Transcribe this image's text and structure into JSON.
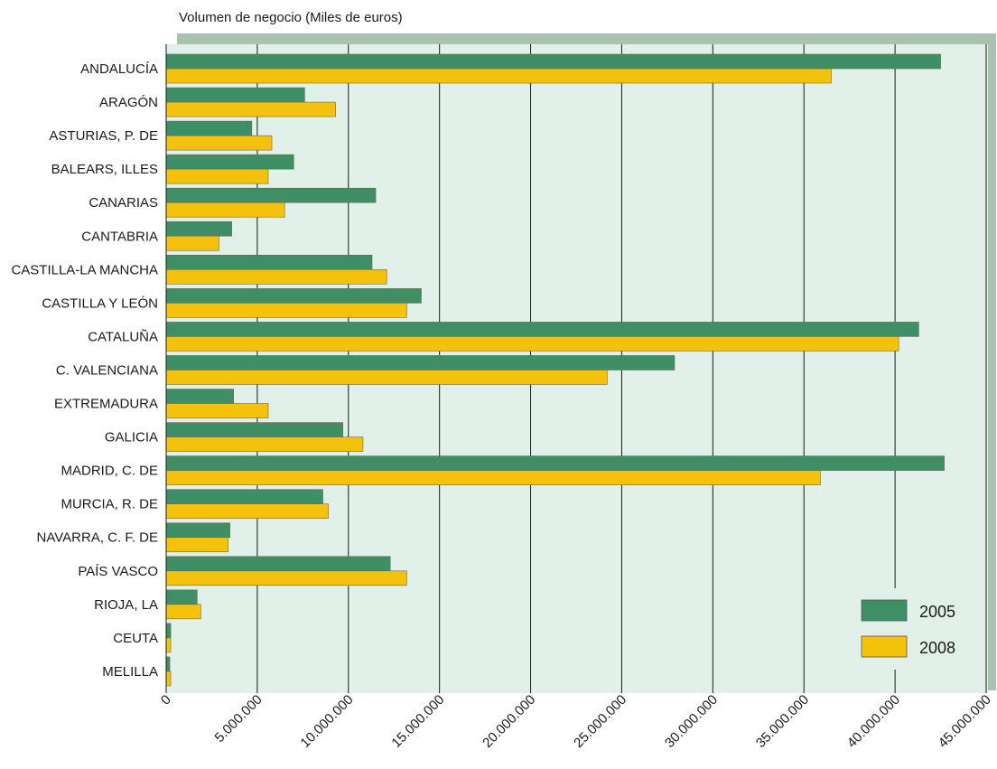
{
  "chart_data": {
    "type": "bar",
    "orientation": "horizontal",
    "title": "Volumen de negocio (Miles de euros)",
    "categories": [
      "ANDALUCÍA",
      "ARAGÓN",
      "ASTURIAS, P. DE",
      "BALEARS, ILLES",
      "CANARIAS",
      "CANTABRIA",
      "CASTILLA-LA MANCHA",
      "CASTILLA Y LEÓN",
      "CATALUÑA",
      "C. VALENCIANA",
      "EXTREMADURA",
      "GALICIA",
      "MADRID, C. DE",
      "MURCIA, R. DE",
      "NAVARRA, C. F. DE",
      "PAÍS VASCO",
      "RIOJA, LA",
      "CEUTA",
      "MELILLA"
    ],
    "series": [
      {
        "name": "2005",
        "color": "#3f8f66",
        "values": [
          42500000,
          7600000,
          4700000,
          7000000,
          11500000,
          3600000,
          11300000,
          14000000,
          41300000,
          27900000,
          3700000,
          9700000,
          42700000,
          8600000,
          3500000,
          12300000,
          1700000,
          250000,
          200000
        ]
      },
      {
        "name": "2008",
        "color": "#f4c20d",
        "values": [
          36500000,
          9300000,
          5800000,
          5600000,
          6500000,
          2900000,
          12100000,
          13200000,
          40200000,
          24200000,
          5600000,
          10800000,
          35900000,
          8900000,
          3400000,
          13200000,
          1900000,
          250000,
          250000
        ]
      }
    ],
    "ticks": [
      "0",
      "5.000.000",
      "10.000.000",
      "15.000.000",
      "20.000.000",
      "25.000.000",
      "30.000.000",
      "35.000.000",
      "40.000.000",
      "45.000.000"
    ],
    "xlim": [
      0,
      45000000
    ],
    "grid": true,
    "legend_position": "bottom-right"
  },
  "colors": {
    "plot_background": "#e1f0e8",
    "shadow": "#a8c4b0",
    "gridline": "#1a1a1a"
  }
}
